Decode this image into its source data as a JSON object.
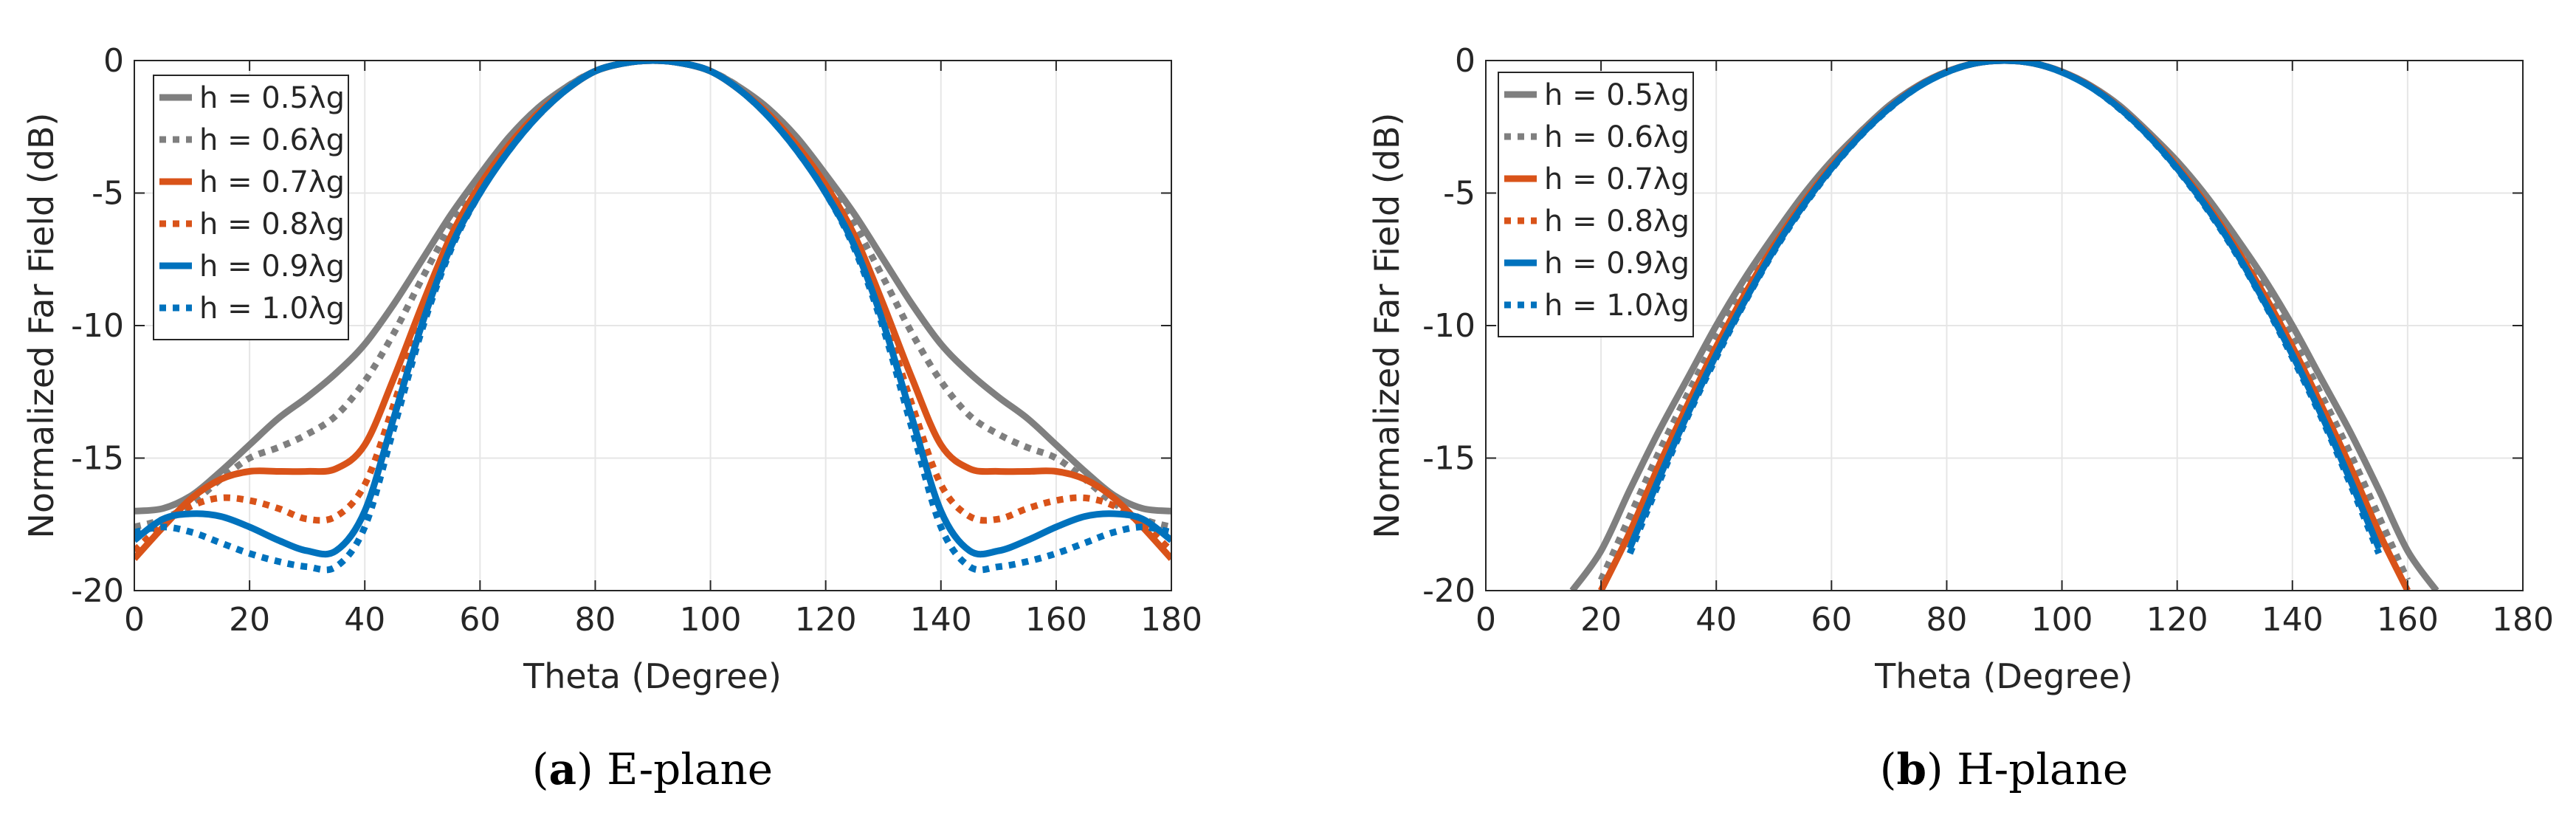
{
  "figure": {
    "captions": [
      {
        "letter": "a",
        "name": "E-plane"
      },
      {
        "letter": "b",
        "name": "H-plane"
      }
    ],
    "series_colors": {
      "gray": "#7f7f7f",
      "orange": "#d95319",
      "blue": "#0072bd",
      "grid": "#e6e6e6",
      "axis": "#262626"
    }
  },
  "chart_data": [
    {
      "id": "e-plane",
      "type": "line",
      "title": "",
      "xlabel": "Theta (Degree)",
      "ylabel": "Normalized Far Field (dB)",
      "xlim": [
        0,
        180
      ],
      "ylim": [
        -20,
        0
      ],
      "xticks": [
        0,
        20,
        40,
        60,
        80,
        100,
        120,
        140,
        160,
        180
      ],
      "yticks": [
        0,
        -5,
        -10,
        -15,
        -20
      ],
      "ytick_labels": [
        "0",
        "-5",
        "-10",
        "-15",
        "-20"
      ],
      "grid": true,
      "legend_position": "top-left",
      "x": [
        0,
        5,
        10,
        15,
        20,
        25,
        30,
        35,
        40,
        45,
        50,
        55,
        60,
        65,
        70,
        75,
        80,
        85,
        90
      ],
      "symmetric_about": 90,
      "series": [
        {
          "name": "h = 0.5λg",
          "color": "gray",
          "dash": "solid",
          "values": [
            -17.0,
            -16.9,
            -16.4,
            -15.5,
            -14.5,
            -13.5,
            -12.7,
            -11.8,
            -10.7,
            -9.2,
            -7.5,
            -5.8,
            -4.3,
            -2.9,
            -1.8,
            -1.0,
            -0.4,
            -0.1,
            0
          ]
        },
        {
          "name": "h = 0.6λg",
          "color": "gray",
          "dash": "dotted",
          "values": [
            -17.6,
            -17.3,
            -16.7,
            -15.8,
            -15.0,
            -14.6,
            -14.1,
            -13.4,
            -12.1,
            -10.3,
            -8.2,
            -6.2,
            -4.5,
            -3.1,
            -1.9,
            -1.0,
            -0.4,
            -0.1,
            0
          ]
        },
        {
          "name": "h = 0.7λg",
          "color": "orange",
          "dash": "solid",
          "values": [
            -18.8,
            -17.6,
            -16.5,
            -15.8,
            -15.5,
            -15.5,
            -15.5,
            -15.4,
            -14.5,
            -12.0,
            -9.2,
            -6.6,
            -4.7,
            -3.2,
            -2.0,
            -1.1,
            -0.4,
            -0.1,
            0
          ]
        },
        {
          "name": "h = 0.8λg",
          "color": "orange",
          "dash": "dotted",
          "values": [
            -18.5,
            -17.5,
            -16.8,
            -16.5,
            -16.6,
            -16.9,
            -17.3,
            -17.2,
            -16.0,
            -13.0,
            -9.6,
            -6.8,
            -4.8,
            -3.3,
            -2.1,
            -1.1,
            -0.4,
            -0.1,
            0
          ]
        },
        {
          "name": "h = 0.9λg",
          "color": "blue",
          "dash": "solid",
          "values": [
            -18.1,
            -17.3,
            -17.1,
            -17.2,
            -17.6,
            -18.1,
            -18.5,
            -18.5,
            -17.0,
            -13.5,
            -9.9,
            -7.0,
            -5.0,
            -3.4,
            -2.1,
            -1.1,
            -0.4,
            -0.1,
            0
          ]
        },
        {
          "name": "h = 1.0λg",
          "color": "blue",
          "dash": "dotted",
          "values": [
            -17.8,
            -17.6,
            -17.8,
            -18.2,
            -18.6,
            -18.9,
            -19.1,
            -19.1,
            -17.6,
            -13.9,
            -10.1,
            -7.1,
            -5.0,
            -3.4,
            -2.1,
            -1.1,
            -0.4,
            -0.1,
            0
          ]
        }
      ]
    },
    {
      "id": "h-plane",
      "type": "line",
      "title": "",
      "xlabel": "Theta (Degree)",
      "ylabel": "Normalized Far Field (dB)",
      "xlim": [
        0,
        180
      ],
      "ylim": [
        -20,
        0
      ],
      "xticks": [
        0,
        20,
        40,
        60,
        80,
        100,
        120,
        140,
        160,
        180
      ],
      "yticks": [
        0,
        -5,
        -10,
        -15,
        -20
      ],
      "ytick_labels": [
        "0",
        "-5",
        "-10",
        "-15",
        "-20"
      ],
      "grid": true,
      "legend_position": "top-left",
      "x": [
        0,
        5,
        10,
        15,
        20,
        25,
        30,
        35,
        40,
        45,
        50,
        55,
        60,
        65,
        70,
        75,
        80,
        85,
        90
      ],
      "symmetric_about": 90,
      "series": [
        {
          "name": "h = 0.5λg",
          "color": "gray",
          "dash": "solid",
          "values": [
            null,
            null,
            null,
            -20.0,
            -18.5,
            -16.2,
            -14.0,
            -12.0,
            -10.0,
            -8.2,
            -6.6,
            -5.1,
            -3.8,
            -2.7,
            -1.7,
            -0.95,
            -0.42,
            -0.1,
            0
          ]
        },
        {
          "name": "h = 0.6λg",
          "color": "gray",
          "dash": "dotted",
          "values": [
            null,
            null,
            null,
            null,
            -19.6,
            -17.2,
            -14.8,
            -12.6,
            -10.5,
            -8.6,
            -6.9,
            -5.3,
            -3.9,
            -2.7,
            -1.75,
            -0.97,
            -0.43,
            -0.1,
            0
          ]
        },
        {
          "name": "h = 0.7λg",
          "color": "orange",
          "dash": "solid",
          "values": [
            null,
            null,
            null,
            null,
            -20.0,
            -17.8,
            -15.3,
            -13.0,
            -10.8,
            -8.8,
            -7.0,
            -5.4,
            -4.0,
            -2.8,
            -1.78,
            -0.98,
            -0.43,
            -0.1,
            0
          ]
        },
        {
          "name": "h = 0.8λg",
          "color": "orange",
          "dash": "dotted",
          "values": [
            null,
            null,
            null,
            null,
            null,
            -18.2,
            -15.6,
            -13.2,
            -11.0,
            -9.0,
            -7.1,
            -5.5,
            -4.05,
            -2.82,
            -1.8,
            -0.99,
            -0.44,
            -0.1,
            0
          ]
        },
        {
          "name": "h = 0.9λg",
          "color": "blue",
          "dash": "solid",
          "values": [
            null,
            null,
            null,
            null,
            null,
            -18.4,
            -15.8,
            -13.35,
            -11.1,
            -9.05,
            -7.15,
            -5.5,
            -4.07,
            -2.83,
            -1.8,
            -1.0,
            -0.44,
            -0.1,
            0
          ]
        },
        {
          "name": "h = 1.0λg",
          "color": "blue",
          "dash": "dotted",
          "values": [
            null,
            null,
            null,
            null,
            null,
            -18.6,
            -15.95,
            -13.45,
            -11.2,
            -9.1,
            -7.2,
            -5.55,
            -4.1,
            -2.85,
            -1.82,
            -1.0,
            -0.44,
            -0.1,
            0
          ]
        }
      ]
    }
  ]
}
